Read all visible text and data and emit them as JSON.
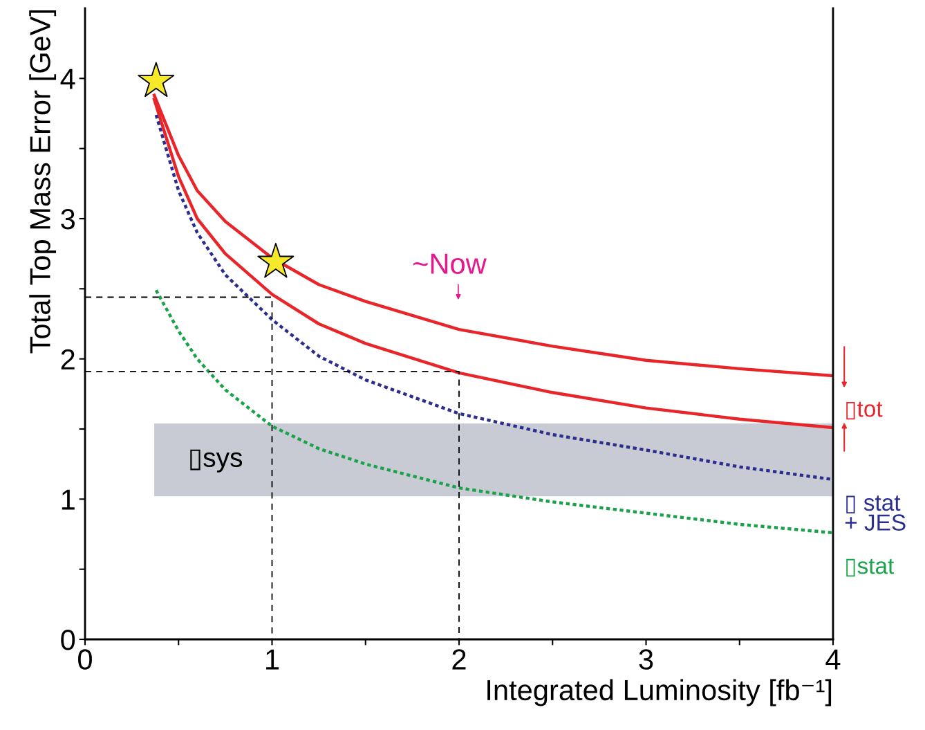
{
  "chart_data": {
    "type": "line",
    "xlabel": "Integrated Luminosity [fb⁻¹]",
    "ylabel": "Total Top Mass Error [GeV]",
    "xlim": [
      0,
      4
    ],
    "ylim": [
      0,
      4.5
    ],
    "xticks": [
      0,
      {
        "value": 0.5,
        "label": null
      },
      1,
      {
        "value": 1.5,
        "label": null
      },
      2,
      {
        "value": 2.5,
        "label": null
      },
      3,
      {
        "value": 3.5,
        "label": null
      },
      4
    ],
    "yticks": [
      0,
      {
        "value": 0.5,
        "label": null
      },
      1,
      {
        "value": 1.5,
        "label": null
      },
      2,
      {
        "value": 2.5,
        "label": null
      },
      3,
      {
        "value": 3.5,
        "label": null
      },
      4
    ],
    "grid": false,
    "legend": "right",
    "series": [
      {
        "name": "▯tot",
        "color": "#e8262a",
        "line_style": "solid",
        "x": [
          0.37,
          0.5,
          0.6,
          0.75,
          1.0,
          1.25,
          1.5,
          2.0,
          2.5,
          3.0,
          3.5,
          4.0
        ],
        "values": [
          3.88,
          3.45,
          3.2,
          2.98,
          2.72,
          2.53,
          2.41,
          2.21,
          2.09,
          1.99,
          1.93,
          1.88
        ]
      },
      {
        "color": "#e8262a",
        "line_style": "solid",
        "x": [
          0.37,
          0.5,
          0.6,
          0.75,
          1.0,
          1.25,
          1.5,
          2.0,
          2.5,
          3.0,
          3.5,
          4.0
        ],
        "values": [
          3.85,
          3.3,
          3.0,
          2.75,
          2.46,
          2.25,
          2.11,
          1.9,
          1.76,
          1.65,
          1.57,
          1.51
        ]
      },
      {
        "name": "▯ stat\n+ JES",
        "color": "#2b2e8c",
        "line_style": "dotted",
        "x": [
          0.38,
          0.5,
          0.6,
          0.75,
          1.0,
          1.25,
          1.5,
          2.0,
          2.5,
          3.0,
          3.5,
          4.0
        ],
        "values": [
          3.74,
          3.2,
          2.9,
          2.6,
          2.28,
          2.02,
          1.85,
          1.61,
          1.46,
          1.35,
          1.23,
          1.14
        ]
      },
      {
        "name": "▯stat",
        "color": "#1aa24a",
        "line_style": "dotted",
        "x": [
          0.38,
          0.5,
          0.6,
          0.75,
          1.0,
          1.25,
          1.5,
          2.0,
          2.5,
          3.0,
          3.5,
          4.0
        ],
        "values": [
          2.49,
          2.2,
          2.0,
          1.78,
          1.52,
          1.36,
          1.25,
          1.08,
          0.98,
          0.9,
          0.82,
          0.76
        ]
      },
      {
        "color": "#000000",
        "line_style": "dashed",
        "x": [
          0,
          1,
          1
        ],
        "values": [
          2.44,
          2.44,
          0
        ]
      },
      {
        "color": "#000000",
        "line_style": "dashed",
        "x": [
          0,
          2,
          2
        ],
        "values": [
          1.91,
          1.91,
          0
        ]
      },
      {
        "type": "scatter",
        "marker": "star",
        "color": "#f5e92a",
        "x": [
          0.38,
          1.02
        ],
        "values": [
          3.98,
          2.69
        ]
      }
    ],
    "bands": [
      {
        "axis": "y",
        "from": 1.02,
        "to": 1.54,
        "label": "▯sys",
        "color": "#c8cbd3"
      }
    ],
    "annotations": [
      "~Now"
    ]
  }
}
